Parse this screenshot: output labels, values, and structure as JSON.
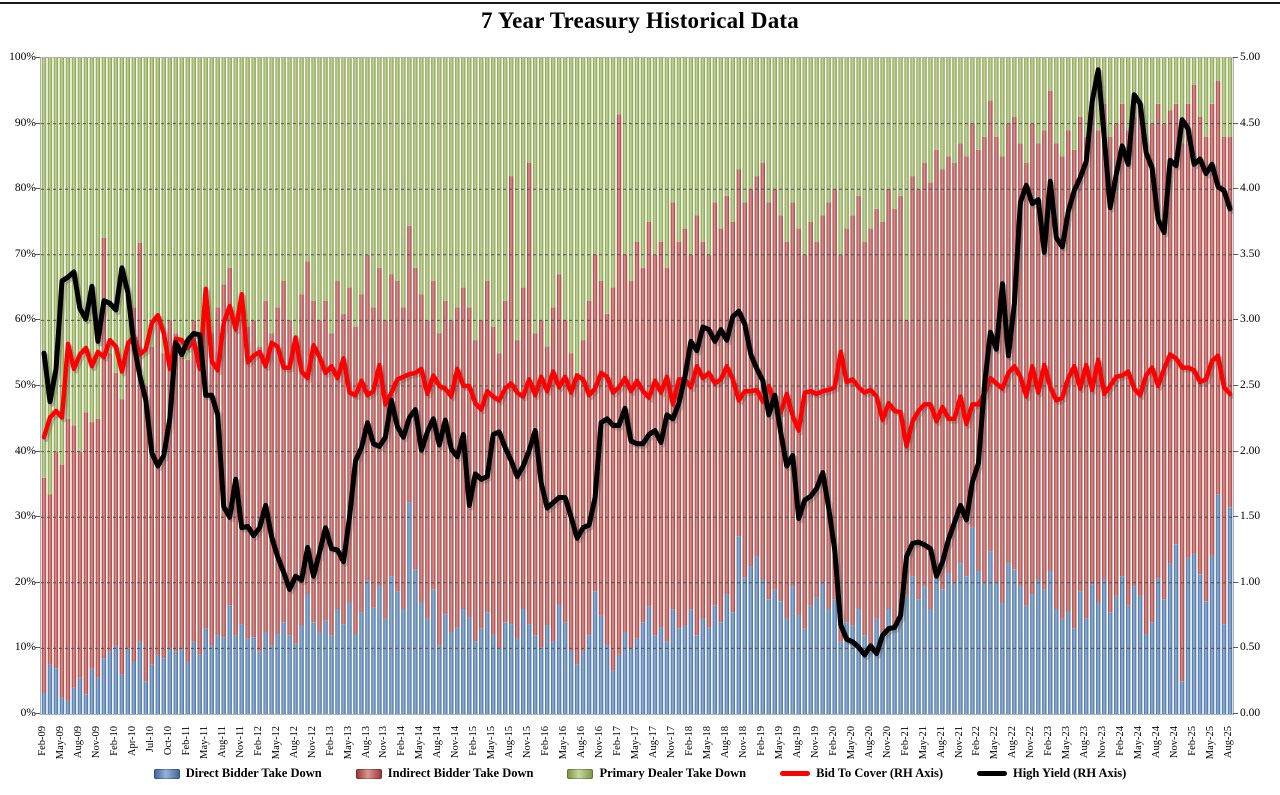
{
  "title": "7 Year Treasury Historical Data",
  "chart_data": {
    "type": "bar",
    "subtype": "stacked-bar-with-lines-combo",
    "grid": "horizontal-dashed",
    "legend_position": "bottom",
    "stacked_bars_sum_to": 100,
    "x_monthly_count": 199,
    "x_first_month": "Feb-09",
    "x_last_month": "Aug-25",
    "x_tick_every": 3,
    "x_tick_labels": [
      "Feb-09",
      "May-09",
      "Aug-09",
      "Nov-09",
      "Feb-10",
      "Apr-10",
      "Jul-10",
      "Oct-10",
      "Feb-11",
      "May-11",
      "Aug-11",
      "Nov-11",
      "Feb-12",
      "May-12",
      "Aug-12",
      "Nov-12",
      "Feb-13",
      "May-13",
      "Aug-13",
      "Nov-13",
      "Feb-14",
      "May-14",
      "Aug-14",
      "Nov-14",
      "Feb-15",
      "May-15",
      "Aug-15",
      "Nov-15",
      "Feb-16",
      "May-16",
      "Aug-16",
      "Nov-16",
      "Feb-17",
      "May-17",
      "Aug-17",
      "Nov-17",
      "Feb-18",
      "May-18",
      "Aug-18",
      "Nov-18",
      "Feb-19",
      "May-19",
      "Aug-19",
      "Nov-19",
      "Feb-20",
      "May-20",
      "Aug-20",
      "Nov-20",
      "Feb-21",
      "May-21",
      "Aug-21",
      "Nov-21",
      "Feb-22",
      "May-22",
      "Aug-22",
      "Nov-22",
      "Feb-23",
      "May-23",
      "Aug-23",
      "Nov-23",
      "Feb-24",
      "May-24",
      "Aug-24",
      "Nov-24",
      "Feb-25",
      "May-25",
      "Aug-25"
    ],
    "left_axis": {
      "min": 0,
      "max": 100,
      "ticks": [
        "0%",
        "10%",
        "20%",
        "30%",
        "40%",
        "50%",
        "60%",
        "70%",
        "80%",
        "90%",
        "100%"
      ]
    },
    "right_axis": {
      "min": 0,
      "max": 5,
      "ticks": [
        "0.00",
        "0.50",
        "1.00",
        "1.50",
        "2.00",
        "2.50",
        "3.00",
        "3.50",
        "4.00",
        "4.50",
        "5.00"
      ]
    },
    "series": [
      {
        "name": "Direct Bidder Take Down",
        "kind": "bar",
        "axis": "left",
        "unit": "%",
        "color": "#4f81bd",
        "color_light": "#96b4d9",
        "color_dark": "#3f699c",
        "values": [
          3.2,
          7.5,
          7.0,
          2.5,
          2.0,
          4.0,
          5.5,
          3.0,
          6.9,
          5.5,
          8.5,
          9.5,
          10.4,
          6.0,
          10.0,
          8.0,
          11.0,
          5.0,
          7.5,
          9.0,
          8.5,
          10.0,
          9.5,
          9.9,
          8.0,
          11.0,
          9.0,
          13.0,
          10.5,
          12.0,
          11.7,
          16.5,
          12.0,
          13.7,
          11.5,
          11.7,
          9.5,
          12.5,
          10.5,
          12.2,
          14.0,
          12.0,
          10.7,
          13.5,
          18.3,
          14.0,
          12.5,
          14.2,
          12.0,
          16.0,
          13.7,
          17.0,
          12.2,
          15.5,
          20.3,
          16.2,
          19.5,
          14.5,
          21.0,
          18.7,
          16.0,
          32.3,
          22.0,
          17.0,
          14.5,
          19.0,
          10.4,
          15.2,
          12.5,
          13.2,
          16.0,
          14.7,
          11.1,
          13.0,
          15.5,
          12.1,
          10.0,
          14.0,
          13.7,
          11.5,
          16.0,
          13.7,
          12.0,
          10.1,
          13.5,
          11.0,
          16.7,
          14.0,
          9.6,
          7.6,
          9.6,
          12.0,
          18.7,
          15.0,
          10.5,
          6.6,
          9.0,
          12.5,
          10.0,
          11.5,
          14.0,
          16.4,
          12.0,
          13.2,
          11.0,
          15.9,
          13.0,
          13.5,
          15.9,
          12.0,
          14.5,
          13.2,
          16.5,
          14.0,
          18.2,
          15.5,
          27.1,
          20.8,
          22.5,
          24.0,
          20.5,
          17.5,
          19.0,
          17.2,
          14.5,
          19.5,
          15.1,
          13.0,
          16.5,
          17.7,
          20.0,
          16.0,
          17.5,
          11.0,
          14.0,
          13.5,
          16.0,
          12.0,
          10.5,
          14.5,
          12.5,
          16.0,
          13.0,
          15.5,
          18.0,
          21.0,
          17.5,
          19.5,
          16.0,
          22.0,
          19.0,
          21.5,
          20.0,
          23.0,
          21.0,
          28.4,
          21.8,
          20.0,
          24.8,
          20.0,
          17.0,
          23.0,
          22.0,
          19.5,
          16.5,
          18.3,
          20.5,
          19.0,
          21.8,
          16.0,
          14.5,
          15.7,
          13.0,
          18.7,
          14.6,
          19.8,
          17.0,
          20.5,
          15.5,
          18.0,
          21.0,
          16.5,
          19.5,
          18.0,
          12.2,
          14.0,
          20.6,
          17.5,
          23.0,
          25.9,
          5.0,
          23.8,
          24.4,
          21.3,
          17.2,
          24.1,
          33.5,
          13.7,
          31.5
        ]
      },
      {
        "name": "Indirect Bidder Take Down",
        "kind": "bar",
        "axis": "left",
        "unit": "%",
        "color": "#c0504d",
        "color_light": "#da9694",
        "color_dark": "#a03936",
        "values": [
          32.8,
          26.0,
          33.0,
          35.5,
          43.0,
          40.0,
          34.5,
          43.0,
          37.6,
          39.5,
          64.1,
          45.5,
          41.6,
          42.0,
          47.0,
          54.0,
          60.8,
          45.0,
          48.5,
          52.0,
          46.5,
          50.0,
          48.5,
          47.1,
          46.0,
          49.0,
          47.0,
          51.5,
          47.5,
          50.0,
          53.8,
          51.5,
          48.0,
          50.3,
          47.5,
          48.3,
          46.5,
          50.5,
          47.5,
          49.8,
          52.0,
          48.0,
          46.3,
          50.5,
          50.7,
          49.0,
          47.5,
          48.8,
          46.0,
          50.0,
          47.3,
          48.0,
          46.8,
          48.5,
          49.7,
          45.8,
          48.5,
          45.5,
          46.0,
          47.3,
          46.0,
          42.1,
          46.0,
          47.0,
          45.5,
          47.0,
          47.6,
          47.8,
          47.5,
          48.8,
          49.0,
          47.3,
          45.9,
          47.0,
          50.5,
          46.9,
          45.0,
          49.0,
          68.3,
          45.5,
          49.0,
          70.3,
          46.0,
          49.9,
          42.5,
          51.0,
          50.3,
          46.0,
          45.4,
          44.4,
          47.4,
          51.0,
          51.3,
          51.0,
          50.5,
          58.4,
          82.4,
          57.5,
          56.0,
          60.5,
          54.0,
          58.6,
          58.0,
          58.8,
          57.0,
          62.1,
          59.0,
          60.5,
          54.1,
          64.0,
          57.5,
          56.8,
          61.5,
          60.0,
          60.8,
          59.5,
          55.9,
          57.2,
          57.5,
          58.0,
          63.5,
          60.5,
          61.0,
          58.8,
          57.5,
          58.5,
          58.9,
          57.0,
          58.5,
          54.3,
          56.0,
          62.0,
          62.5,
          59.0,
          60.0,
          62.5,
          63.0,
          60.0,
          63.5,
          62.5,
          62.5,
          64.0,
          64.0,
          63.5,
          42.0,
          61.0,
          62.5,
          64.5,
          65.0,
          64.0,
          64.0,
          63.5,
          64.0,
          64.0,
          64.0,
          61.6,
          64.2,
          68.0,
          68.7,
          68.0,
          68.0,
          67.0,
          69.0,
          67.5,
          67.5,
          71.7,
          66.5,
          70.0,
          73.2,
          71.0,
          70.5,
          73.3,
          73.0,
          72.3,
          73.4,
          72.2,
          72.0,
          72.5,
          72.5,
          72.0,
          72.0,
          72.5,
          71.5,
          74.0,
          74.8,
          76.0,
          72.4,
          72.5,
          69.0,
          67.1,
          82.0,
          69.2,
          71.5,
          69.7,
          70.8,
          68.9,
          63.0,
          74.3,
          56.5
        ]
      },
      {
        "name": "Primary Dealer Take Down",
        "kind": "bar",
        "axis": "left",
        "unit": "%",
        "color": "#9bbb59",
        "color_light": "#c7d79e",
        "color_dark": "#7e9a45",
        "values_rule": "remainder_to_100"
      },
      {
        "name": "Bid To Cover (RH Axis)",
        "kind": "line",
        "axis": "right",
        "color": "#ff0000",
        "stroke_width": 4.5,
        "values": [
          2.11,
          2.26,
          2.31,
          2.26,
          2.82,
          2.63,
          2.74,
          2.79,
          2.65,
          2.76,
          2.72,
          2.85,
          2.8,
          2.61,
          2.82,
          2.88,
          2.74,
          2.78,
          2.98,
          3.04,
          2.9,
          2.63,
          2.86,
          2.85,
          2.79,
          2.85,
          2.63,
          3.24,
          2.69,
          2.62,
          2.98,
          3.11,
          2.93,
          3.2,
          2.68,
          2.73,
          2.76,
          2.65,
          2.83,
          2.8,
          2.64,
          2.64,
          2.87,
          2.61,
          2.56,
          2.81,
          2.72,
          2.6,
          2.65,
          2.56,
          2.71,
          2.45,
          2.43,
          2.54,
          2.43,
          2.46,
          2.66,
          2.36,
          2.45,
          2.55,
          2.57,
          2.59,
          2.6,
          2.63,
          2.44,
          2.58,
          2.5,
          2.48,
          2.42,
          2.63,
          2.5,
          2.5,
          2.37,
          2.32,
          2.46,
          2.42,
          2.39,
          2.48,
          2.52,
          2.45,
          2.42,
          2.55,
          2.43,
          2.57,
          2.46,
          2.61,
          2.49,
          2.57,
          2.45,
          2.58,
          2.55,
          2.43,
          2.48,
          2.6,
          2.57,
          2.45,
          2.49,
          2.56,
          2.46,
          2.54,
          2.46,
          2.41,
          2.54,
          2.45,
          2.57,
          2.36,
          2.55,
          2.55,
          2.49,
          2.65,
          2.56,
          2.6,
          2.52,
          2.55,
          2.65,
          2.55,
          2.39,
          2.46,
          2.46,
          2.47,
          2.38,
          2.5,
          2.36,
          2.3,
          2.44,
          2.27,
          2.16,
          2.45,
          2.46,
          2.44,
          2.46,
          2.47,
          2.49,
          2.76,
          2.53,
          2.55,
          2.49,
          2.45,
          2.47,
          2.42,
          2.24,
          2.37,
          2.31,
          2.3,
          2.04,
          2.23,
          2.31,
          2.36,
          2.36,
          2.23,
          2.34,
          2.25,
          2.25,
          2.42,
          2.21,
          2.36,
          2.36,
          2.44,
          2.56,
          2.52,
          2.48,
          2.6,
          2.65,
          2.57,
          2.42,
          2.65,
          2.45,
          2.66,
          2.49,
          2.39,
          2.41,
          2.56,
          2.65,
          2.48,
          2.66,
          2.47,
          2.7,
          2.44,
          2.5,
          2.57,
          2.58,
          2.61,
          2.48,
          2.43,
          2.58,
          2.64,
          2.5,
          2.63,
          2.74,
          2.71,
          2.64,
          2.64,
          2.62,
          2.53,
          2.55,
          2.69,
          2.73,
          2.49,
          2.44
        ]
      },
      {
        "name": "High Yield (RH Axis)",
        "kind": "line",
        "axis": "right",
        "color": "#000000",
        "stroke_width": 5,
        "values": [
          2.75,
          2.38,
          2.63,
          3.3,
          3.33,
          3.37,
          3.09,
          3.01,
          3.26,
          2.84,
          3.15,
          3.13,
          3.08,
          3.4,
          3.21,
          2.82,
          2.58,
          2.39,
          1.99,
          1.89,
          1.97,
          2.25,
          2.83,
          2.74,
          2.85,
          2.9,
          2.89,
          2.43,
          2.43,
          2.28,
          1.58,
          1.5,
          1.79,
          1.42,
          1.43,
          1.36,
          1.42,
          1.59,
          1.35,
          1.2,
          1.08,
          0.95,
          1.05,
          1.02,
          1.27,
          1.05,
          1.23,
          1.42,
          1.26,
          1.25,
          1.16,
          1.5,
          1.93,
          2.03,
          2.22,
          2.06,
          2.04,
          2.11,
          2.39,
          2.19,
          2.11,
          2.26,
          2.32,
          2.01,
          2.15,
          2.25,
          2.05,
          2.24,
          2.02,
          1.96,
          2.13,
          1.59,
          1.83,
          1.79,
          1.81,
          2.13,
          2.15,
          2.03,
          1.93,
          1.81,
          1.89,
          2.01,
          2.16,
          1.76,
          1.57,
          1.61,
          1.65,
          1.65,
          1.5,
          1.34,
          1.42,
          1.44,
          1.65,
          2.22,
          2.25,
          2.2,
          2.2,
          2.33,
          2.08,
          2.06,
          2.06,
          2.13,
          2.16,
          2.07,
          2.28,
          2.25,
          2.37,
          2.57,
          2.84,
          2.77,
          2.95,
          2.93,
          2.84,
          2.93,
          2.85,
          3.03,
          3.07,
          2.97,
          2.74,
          2.63,
          2.54,
          2.28,
          2.43,
          2.14,
          1.89,
          1.97,
          1.49,
          1.63,
          1.66,
          1.72,
          1.84,
          1.57,
          1.25,
          0.68,
          0.57,
          0.55,
          0.51,
          0.45,
          0.52,
          0.46,
          0.6,
          0.65,
          0.66,
          0.75,
          1.2,
          1.3,
          1.31,
          1.29,
          1.26,
          1.05,
          1.16,
          1.33,
          1.46,
          1.59,
          1.48,
          1.77,
          1.91,
          2.5,
          2.91,
          2.78,
          3.28,
          2.73,
          3.13,
          3.9,
          4.03,
          3.89,
          3.92,
          3.52,
          4.06,
          3.63,
          3.56,
          3.83,
          3.99,
          4.09,
          4.21,
          4.67,
          4.91,
          4.4,
          3.86,
          4.11,
          4.33,
          4.19,
          4.72,
          4.65,
          4.28,
          4.16,
          3.77,
          3.67,
          4.22,
          4.18,
          4.53,
          4.46,
          4.19,
          4.23,
          4.12,
          4.19,
          4.02,
          3.99,
          3.85
        ]
      }
    ]
  }
}
